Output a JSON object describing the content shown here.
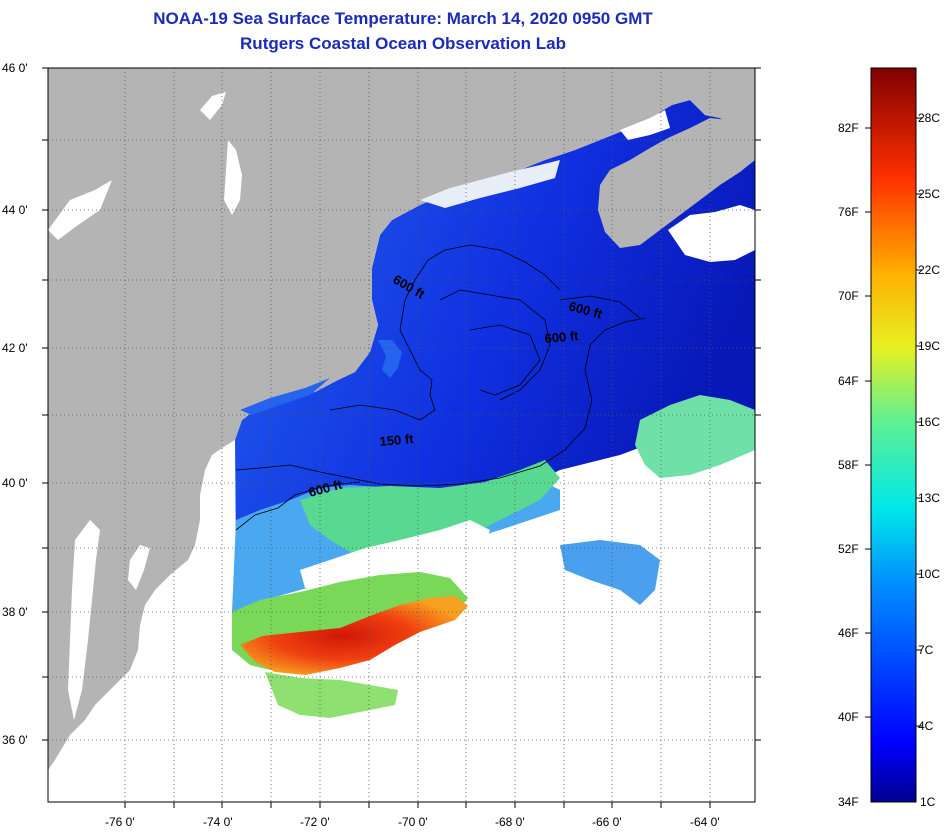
{
  "title": "NOAA-19 Sea Surface Temperature:  March 14, 2020 0950 GMT",
  "subtitle": "Rutgers Coastal Ocean Observation Lab",
  "map": {
    "lon_labels": [
      "-76 0'",
      "-74 0'",
      "-72 0'",
      "-70 0'",
      "-68 0'",
      "-66 0'",
      "-64 0'"
    ],
    "lat_labels": [
      "46 0'",
      "44 0'",
      "42 0'",
      "40 0'",
      "38 0'",
      "36 0'"
    ],
    "contours": [
      {
        "label": "600 ft"
      },
      {
        "label": "600 ft"
      },
      {
        "label": "600 ft"
      },
      {
        "label": "150 ft"
      },
      {
        "label": "600 ft"
      }
    ],
    "colors": {
      "land": "#b4b4b4",
      "cloud": "#ffffff"
    }
  },
  "colorbar": {
    "fahrenheit": [
      "82F",
      "76F",
      "70F",
      "64F",
      "58F",
      "52F",
      "46F",
      "40F",
      "34F"
    ],
    "celsius": [
      "28C",
      "25C",
      "22C",
      "19C",
      "16C",
      "13C",
      "10C",
      "7C",
      "4C",
      "1C"
    ]
  }
}
